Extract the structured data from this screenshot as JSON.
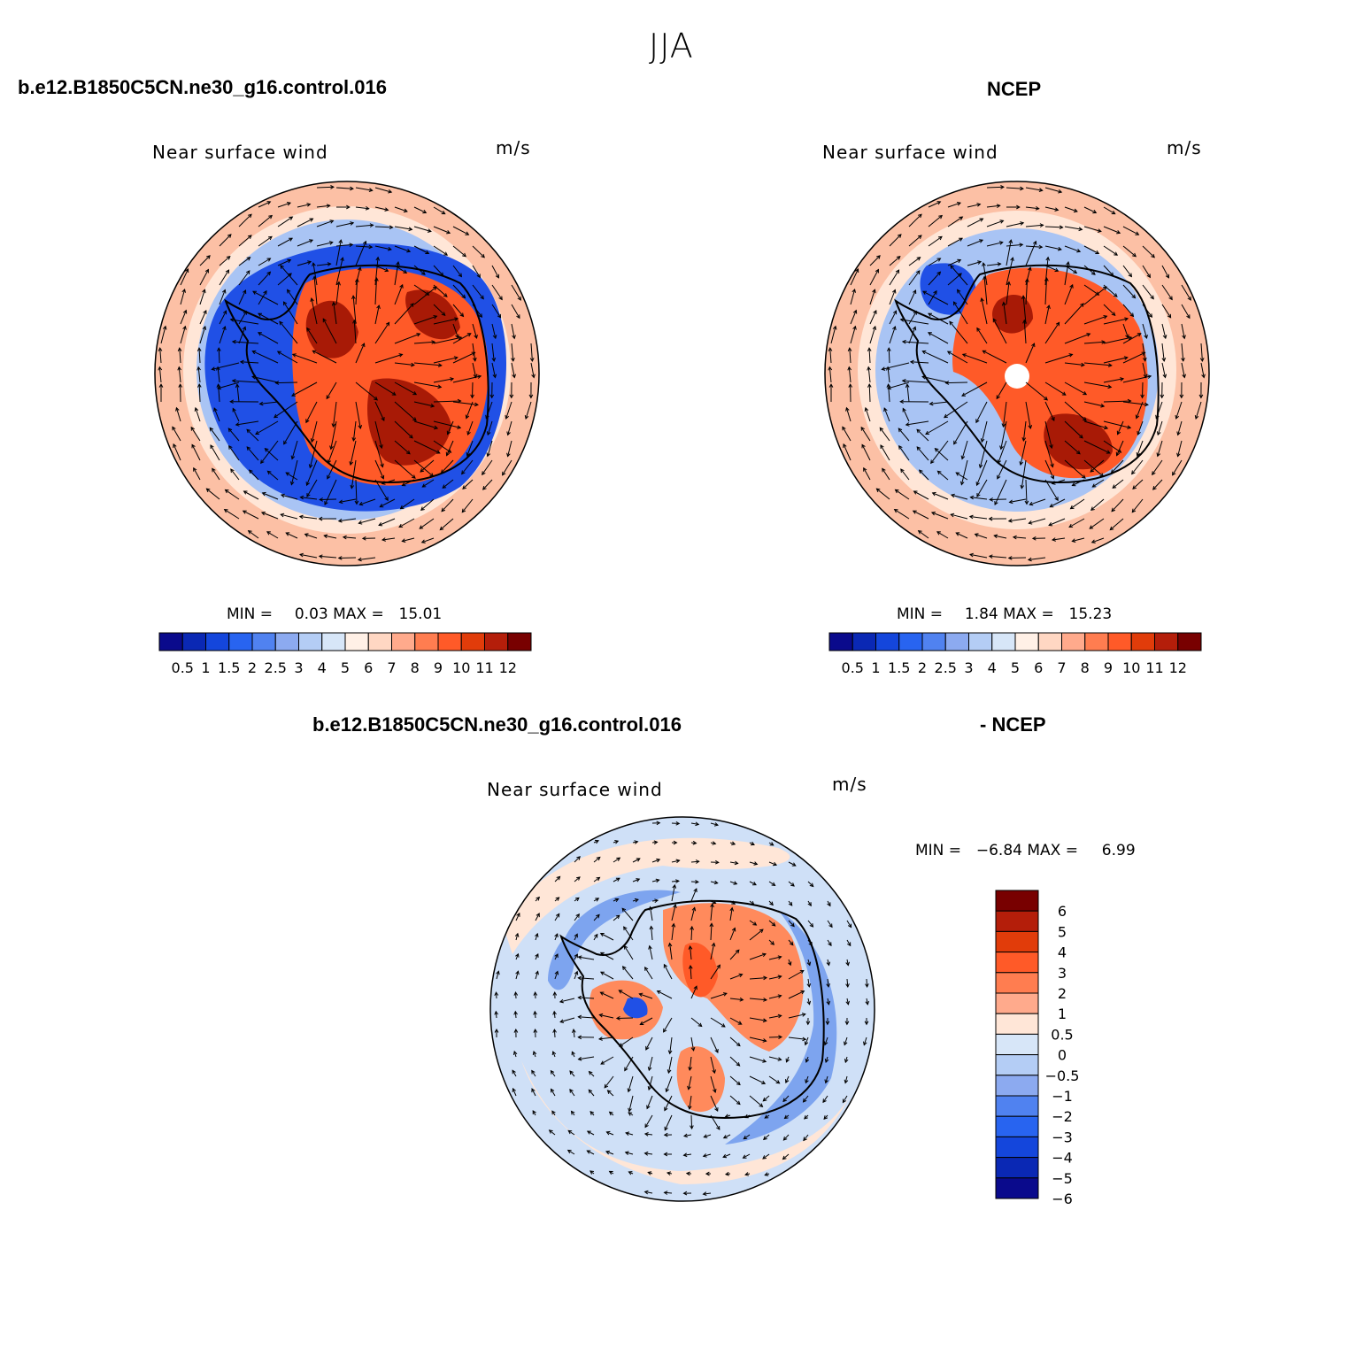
{
  "figure": {
    "title": "JJA",
    "case_name_top": "b.e12.B1850C5CN.ne30_g16.control.016",
    "obs_name_top": "NCEP",
    "case_name_diff": "b.e12.B1850C5CN.ne30_g16.control.016",
    "obs_name_diff": "- NCEP"
  },
  "panels": [
    {
      "id": "model",
      "variable": "Near surface wind",
      "units": "m/s",
      "min_label": "MIN =",
      "min_value": "0.03",
      "max_label": "MAX =",
      "max_value": "15.01"
    },
    {
      "id": "obs",
      "variable": "Near surface wind",
      "units": "m/s",
      "min_label": "MIN =",
      "min_value": "1.84",
      "max_label": "MAX =",
      "max_value": "15.23"
    },
    {
      "id": "diff",
      "variable": "Near surface wind",
      "units": "m/s",
      "min_label": "MIN =",
      "min_value": "−6.84",
      "max_label": "MAX =",
      "max_value": "6.99"
    }
  ],
  "colorbar_abs": {
    "colors": [
      "#0a0a8c",
      "#0a28b4",
      "#1446dc",
      "#2864f0",
      "#5082f0",
      "#8caaf0",
      "#b4cdf5",
      "#d7e6f8",
      "#fff0e6",
      "#ffd7c3",
      "#ffaa8c",
      "#ff7d50",
      "#ff5a28",
      "#e13c0a",
      "#b41e0a",
      "#780000"
    ],
    "tick_labels": [
      "0.5",
      "1",
      "1.5",
      "2",
      "2.5",
      "3",
      "4",
      "5",
      "6",
      "7",
      "8",
      "9",
      "10",
      "11",
      "12"
    ]
  },
  "colorbar_diff": {
    "colors": [
      "#780000",
      "#b41e0a",
      "#e13c0a",
      "#ff5a28",
      "#ff7d50",
      "#ffaa8c",
      "#ffe6d7",
      "#d7e6f8",
      "#b4cdf5",
      "#8caaf0",
      "#5082f0",
      "#2864f0",
      "#1446dc",
      "#0a28b4",
      "#0a0a8c"
    ],
    "tick_labels": [
      "6",
      "5",
      "4",
      "3",
      "2",
      "1",
      "0.5",
      "0",
      "−0.5",
      "−1",
      "−2",
      "−3",
      "−4",
      "−5",
      "−6"
    ]
  },
  "map_colors": {
    "ocean_far": "#fcc0a5",
    "ocean_band": "#ffe6d7",
    "coastal_blue_strong": "#2050e6",
    "coastal_blue_light": "#a9c4f4",
    "interior_red": "#ff5a28",
    "interior_dark": "#a81a06",
    "diff_background": "#cfe0f7",
    "diff_blue": "#7da4ef",
    "diff_red": "#ff8a5c",
    "coastline": "#000000"
  }
}
